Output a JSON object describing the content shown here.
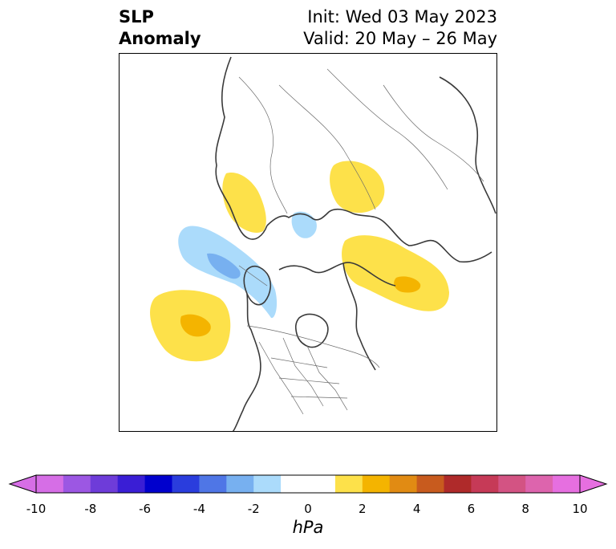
{
  "header": {
    "title_line1": "SLP",
    "title_line2": "Anomaly",
    "init": "Init: Wed 03 May 2023",
    "valid": "Valid: 20 May – 26 May"
  },
  "colorbar": {
    "unit": "hPa",
    "min": -10,
    "max": 10,
    "step": 1,
    "tick_labels": [
      "-10",
      "-8",
      "-6",
      "-4",
      "-2",
      "0",
      "2",
      "4",
      "6",
      "8",
      "10"
    ],
    "colors": [
      "#d66ee6",
      "#9c57e3",
      "#6e3cd9",
      "#3a1ed5",
      "#0000cd",
      "#2a3ddd",
      "#4f76e6",
      "#77b0f0",
      "#abdbfb",
      "#ffffff",
      "#ffffff",
      "#fde14a",
      "#f4b400",
      "#e18b13",
      "#c85b1e",
      "#af2a2a",
      "#c63a57",
      "#d35383",
      "#dd64ad",
      "#e66fe0"
    ]
  },
  "legend_colors": {
    "positive_anomaly": "#fde14a",
    "strong_positive": "#f4b400",
    "negative_anomaly": "#abdbfb",
    "strong_negative": "#77b0f0",
    "coastline": "#3a3a3a"
  }
}
